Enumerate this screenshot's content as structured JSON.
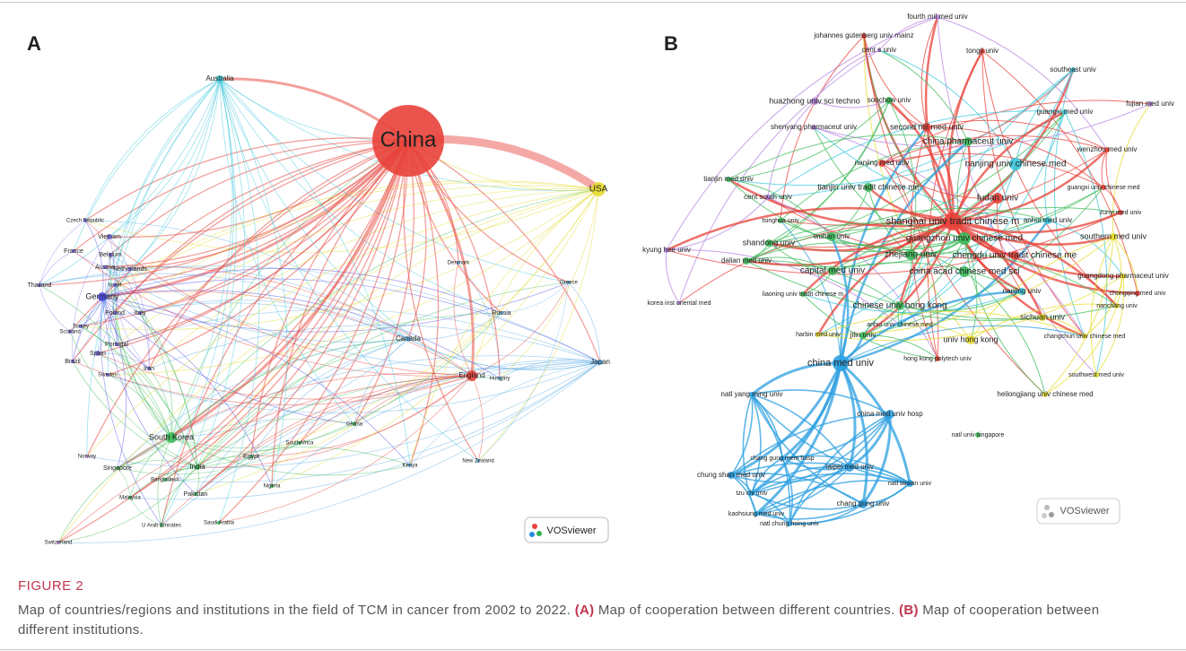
{
  "panel_a": {
    "label": "A",
    "logo": "VOSviewer",
    "nodes": [
      "China",
      "USA",
      "Australia",
      "Czech Republic",
      "Vietnam",
      "France",
      "Belgium",
      "Austria",
      "Netherlands",
      "Germany",
      "Thailand",
      "Israel",
      "Poland",
      "Italy",
      "Scotland",
      "Turkey",
      "Portugal",
      "Spain",
      "Brazil",
      "Sweden",
      "Iran",
      "Denmark",
      "Greece",
      "Russia",
      "Canada",
      "England",
      "Hungary",
      "Japan",
      "Ghana",
      "South Korea",
      "SouthAfrica",
      "Egypt",
      "Norway",
      "Singapore",
      "India",
      "Bangladesh",
      "Kenya",
      "New Zealand",
      "Pakistan",
      "Nigeria",
      "Malaysia",
      "Saudi Arabia",
      "U Arab Emirates",
      "Switzerland"
    ]
  },
  "panel_b": {
    "label": "B",
    "logo": "VOSviewer",
    "nodes": [
      "fourth mil med univ",
      "johannes gutenberg univ mainz",
      "cent s univ",
      "tongji univ",
      "southeast univ",
      "fujian med univ",
      "huazhong univ sci techno",
      "soochow univ",
      "guangxi med univ",
      "second mil med univ",
      "shenyang pharmaceut univ",
      "china pharmaceut univ",
      "wenzhou med univ",
      "nanjing med univ",
      "nanjing univ chinese med",
      "tianjin med univ",
      "guangxi univ chinese med",
      "tianjin univ tradit chinese me",
      "cent south univ",
      "fudan univ",
      "anhui med univ",
      "tsinghua univ",
      "shanghai univ tradit chinese m",
      "zunyi med univ",
      "kyung hee univ",
      "wuhan univ",
      "guangzhou univ chinese med",
      "southern med univ",
      "shandong univ",
      "zhejiang univ",
      "chengdu univ tradit chinese me",
      "dalian med univ",
      "capital med univ",
      "china acad chinese med sci",
      "guangdong pharmaceut univ",
      "liaoning univ tradit chinese m",
      "nanjing univ",
      "chongqing med univ",
      "korea inst oriental med",
      "chinese univ hong kong",
      "nanchang univ",
      "sichuan univ",
      "harbin med univ",
      "anhui univ chinese med",
      "jilin univ",
      "changchun univ chinese med",
      "univ hong kong",
      "china med univ",
      "hong kong polytech univ",
      "southwest med univ",
      "heilongjiang univ chinese med",
      "natl yang ming univ",
      "china med univ hosp",
      "natl univ singapore",
      "chang gung mem hosp",
      "chung shan med univ",
      "taipei med univ",
      "natl taiwan univ",
      "tzu chi univ",
      "chang gung univ",
      "kaohsiung med univ",
      "natl chung hsing univ"
    ]
  },
  "caption": {
    "figure": "FIGURE 2",
    "parts": [
      "Map of countries/regions and institutions in the field of TCM in cancer from 2002 to 2022. ",
      "(A)",
      " Map of cooperation between different countries. ",
      "(B)",
      " Map of cooperation between different institutions."
    ]
  }
}
